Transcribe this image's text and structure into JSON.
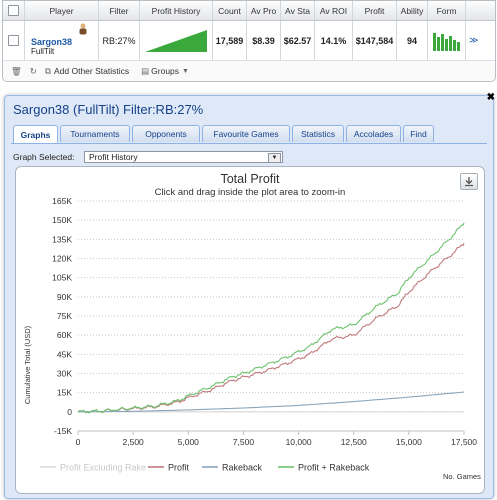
{
  "table": {
    "headers": [
      "Player",
      "Filter",
      "Profit History",
      "Count",
      "Av Pro",
      "Av Sta",
      "Av ROI",
      "Profit",
      "Ability",
      "Form"
    ],
    "row": {
      "player_name": "Sargon38",
      "player_site": "FullTilt",
      "filter": "RB:27%",
      "count": "17,589",
      "av_profit": "$8.39",
      "av_stake": "$62.57",
      "av_roi": "14.1%",
      "profit": "$147,584",
      "ability": "94",
      "form_levels": [
        0.9,
        0.7,
        0.85,
        0.6,
        0.75,
        0.55,
        0.45
      ]
    },
    "footer": {
      "add_stats": "Add Other Statistics",
      "groups": "Groups"
    }
  },
  "window": {
    "title": "Sargon38 (FullTilt) Filter:RB:27%",
    "tabs": [
      "Graphs",
      "Tournaments",
      "Opponents",
      "Favourite Games",
      "Statistics",
      "Accolades",
      "Find"
    ],
    "active_tab": "Graphs",
    "graph_selected_label": "Graph Selected:",
    "graph_selected_value": "Profit History"
  },
  "chart_data": {
    "type": "line",
    "title": "Total Profit",
    "subtitle": "Click and drag inside the plot area to zoom-in",
    "ylabel": "Cumulative Total (USD)",
    "xlabel": "No. Games",
    "xlim": [
      0,
      17500
    ],
    "ylim": [
      -15000,
      165000
    ],
    "x_ticks": [
      "0",
      "2,500",
      "5,000",
      "7,500",
      "10,000",
      "12,500",
      "15,000",
      "17,500"
    ],
    "y_ticks": [
      "-15K",
      "0",
      "15K",
      "30K",
      "45K",
      "60K",
      "75K",
      "90K",
      "105K",
      "120K",
      "135K",
      "150K",
      "165K"
    ],
    "grid": "horizontal dotted",
    "legend_position": "bottom",
    "series": [
      {
        "name": "Profit Excluding Rake",
        "color": "#d8d8d8",
        "x": [
          0,
          17500
        ],
        "y": [
          0,
          0
        ]
      },
      {
        "name": "Profit",
        "color": "#c07a7c",
        "x": [
          0,
          1000,
          2500,
          3500,
          4500,
          5000,
          6000,
          7000,
          7500,
          8500,
          9500,
          10500,
          11500,
          12500,
          13500,
          14500,
          15000,
          16000,
          17000,
          17500
        ],
        "y": [
          0,
          500,
          2500,
          4000,
          7500,
          11000,
          17000,
          24500,
          27000,
          32000,
          38000,
          45000,
          57000,
          60000,
          73000,
          83000,
          94000,
          110000,
          124000,
          132000
        ]
      },
      {
        "name": "Rakeback",
        "color": "#8aa6bc",
        "x": [
          0,
          2500,
          5000,
          7500,
          10000,
          12500,
          15000,
          17500
        ],
        "y": [
          0,
          400,
          1500,
          3000,
          5000,
          8000,
          11500,
          15500
        ]
      },
      {
        "name": "Profit + Rakeback",
        "color": "#6dc26d",
        "x": [
          0,
          1000,
          2500,
          3500,
          4500,
          5000,
          6000,
          7000,
          7500,
          8500,
          9500,
          10500,
          11500,
          12500,
          13500,
          14500,
          15000,
          16000,
          17000,
          17500
        ],
        "y": [
          0,
          600,
          3000,
          4500,
          8500,
          12500,
          19500,
          27500,
          30000,
          36500,
          43000,
          51000,
          64500,
          68000,
          82000,
          93000,
          105000,
          121000,
          138000,
          148000
        ]
      }
    ]
  }
}
